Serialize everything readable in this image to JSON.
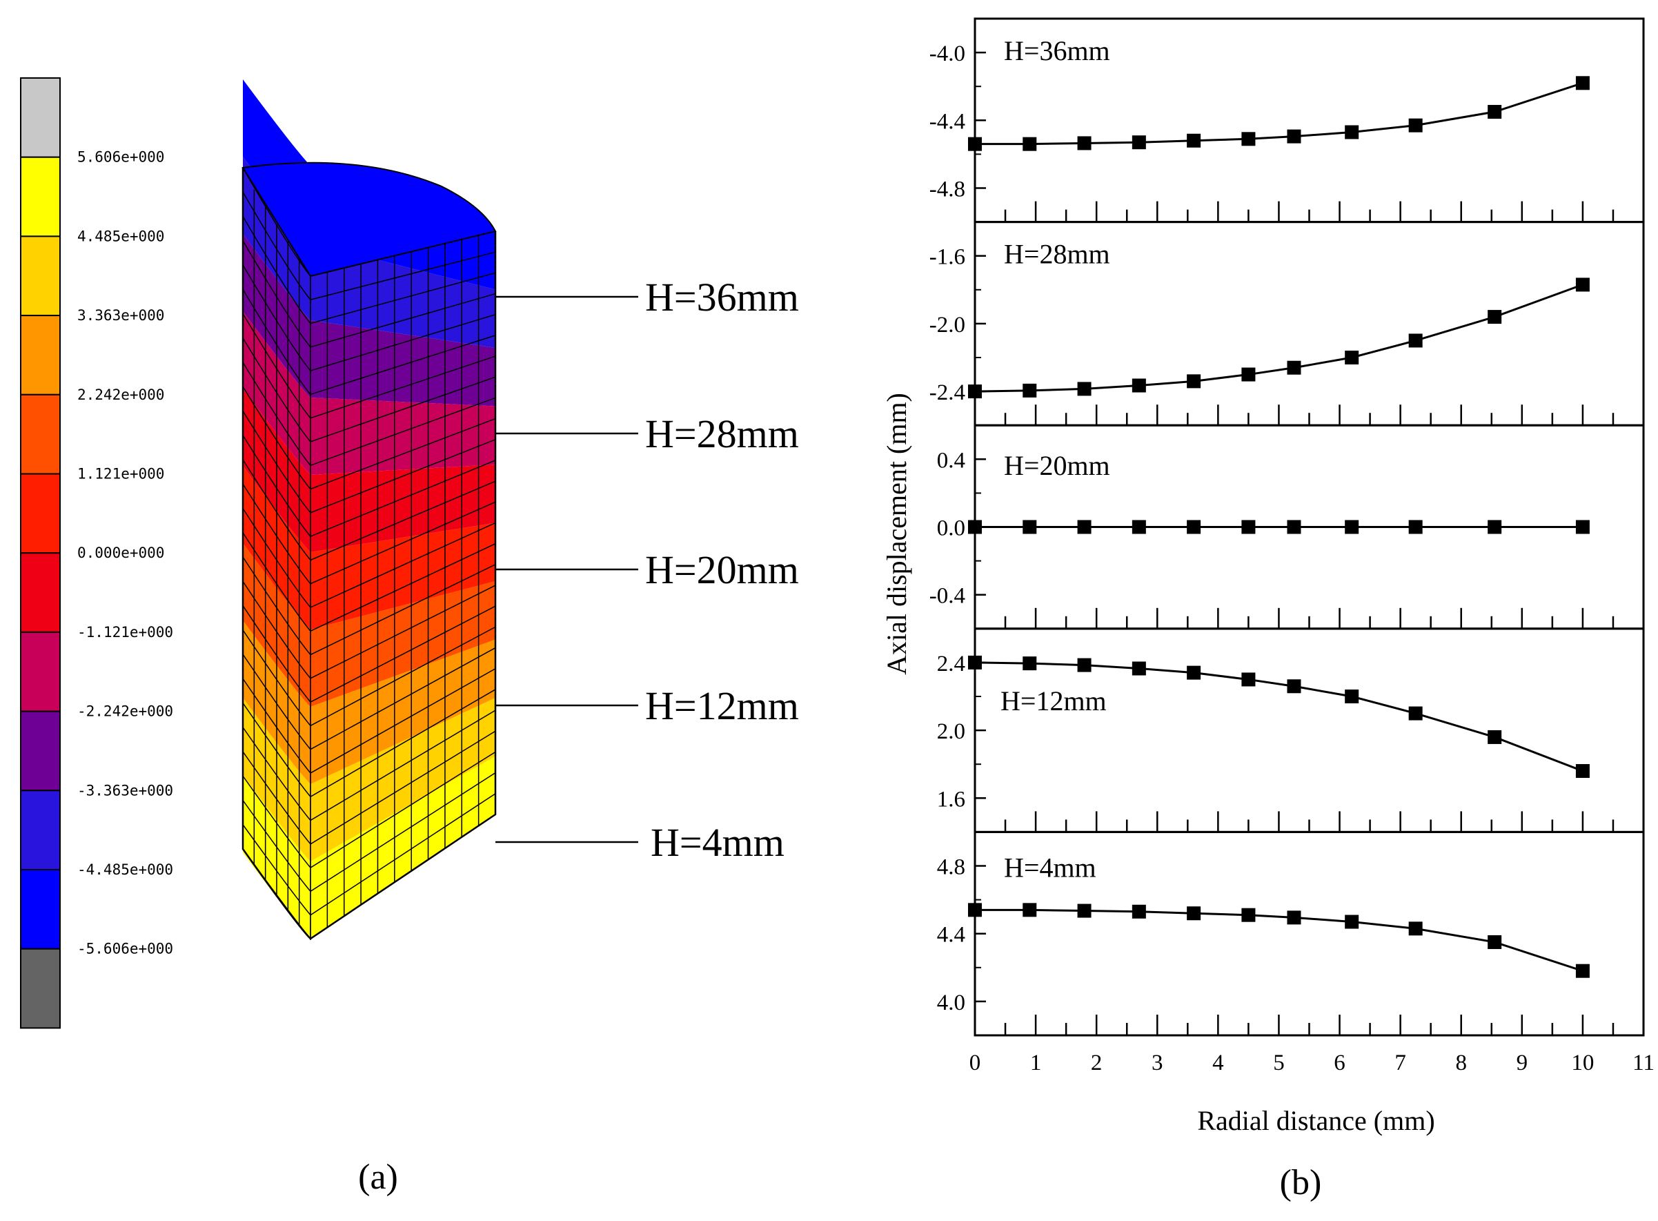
{
  "captions": {
    "a": "(a)",
    "b": "(b)"
  },
  "colorbar": {
    "levels": [
      {
        "label": "5.606e+000",
        "color": "#c8c8c8"
      },
      {
        "label": "4.485e+000",
        "color": "#ffff00"
      },
      {
        "label": "3.363e+000",
        "color": "#ffd200"
      },
      {
        "label": "2.242e+000",
        "color": "#ff9600"
      },
      {
        "label": "1.121e+000",
        "color": "#ff5000"
      },
      {
        "label": "0.000e+000",
        "color": "#ff1e00"
      },
      {
        "label": "-1.121e+000",
        "color": "#f00014"
      },
      {
        "label": "-2.242e+000",
        "color": "#c8005a"
      },
      {
        "label": "-3.363e+000",
        "color": "#6e0096"
      },
      {
        "label": "-4.485e+000",
        "color": "#2814dc"
      },
      {
        "label": "-5.606e+000",
        "color": "#0000ff"
      },
      {
        "label": "",
        "color": "#646464"
      }
    ]
  },
  "cylinder": {
    "band_colors": [
      "#ffff00",
      "#ffd200",
      "#ff9600",
      "#ff5000",
      "#ff1e00",
      "#f00014",
      "#c8005a",
      "#6e0096",
      "#2814dc",
      "#0000ff"
    ],
    "callouts": [
      "H=36mm",
      "H=28mm",
      "H=20mm",
      "H=12mm",
      "H=4mm"
    ]
  },
  "chart_data": {
    "type": "line",
    "xlabel": "Radial distance (mm)",
    "ylabel": "Axial displacement (mm)",
    "xlim": [
      0,
      11
    ],
    "x_ticks": [
      0,
      1,
      2,
      3,
      4,
      5,
      6,
      7,
      8,
      9,
      10,
      11
    ],
    "x": [
      0,
      0.9,
      1.8,
      2.7,
      3.6,
      4.5,
      5.25,
      6.2,
      7.25,
      8.55,
      10
    ],
    "panels": [
      {
        "name": "H=36mm",
        "ylim": [
          -5.0,
          -3.8
        ],
        "yticks": [
          "-4.0",
          "-4.4",
          "-4.8"
        ],
        "ytick_values": [
          -4.0,
          -4.4,
          -4.8
        ],
        "values": [
          -4.54,
          -4.54,
          -4.535,
          -4.53,
          -4.52,
          -4.51,
          -4.495,
          -4.47,
          -4.43,
          -4.35,
          -4.18
        ]
      },
      {
        "name": "H=28mm",
        "ylim": [
          -2.6,
          -1.4
        ],
        "yticks": [
          "-1.6",
          "-2.0",
          "-2.4"
        ],
        "ytick_values": [
          -1.6,
          -2.0,
          -2.4
        ],
        "values": [
          -2.4,
          -2.395,
          -2.385,
          -2.365,
          -2.34,
          -2.3,
          -2.26,
          -2.2,
          -2.1,
          -1.96,
          -1.77
        ]
      },
      {
        "name": "H=20mm",
        "ylim": [
          -0.6,
          0.6
        ],
        "yticks": [
          "0.4",
          "0.0",
          "-0.4"
        ],
        "ytick_values": [
          0.4,
          0.0,
          -0.4
        ],
        "values": [
          0,
          0,
          0,
          0,
          0,
          0,
          0,
          0,
          0,
          0,
          0
        ]
      },
      {
        "name": "H=12mm",
        "ylim": [
          1.4,
          2.6
        ],
        "yticks": [
          "2.4",
          "2.0",
          "1.6"
        ],
        "ytick_values": [
          2.4,
          2.0,
          1.6
        ],
        "values": [
          2.4,
          2.395,
          2.385,
          2.365,
          2.34,
          2.3,
          2.26,
          2.2,
          2.1,
          1.96,
          1.76
        ]
      },
      {
        "name": "H=4mm",
        "ylim": [
          3.8,
          5.0
        ],
        "yticks": [
          "4.8",
          "4.4",
          "4.0"
        ],
        "ytick_values": [
          4.8,
          4.4,
          4.0
        ],
        "values": [
          4.54,
          4.54,
          4.535,
          4.53,
          4.52,
          4.51,
          4.495,
          4.47,
          4.43,
          4.35,
          4.18
        ]
      }
    ]
  }
}
